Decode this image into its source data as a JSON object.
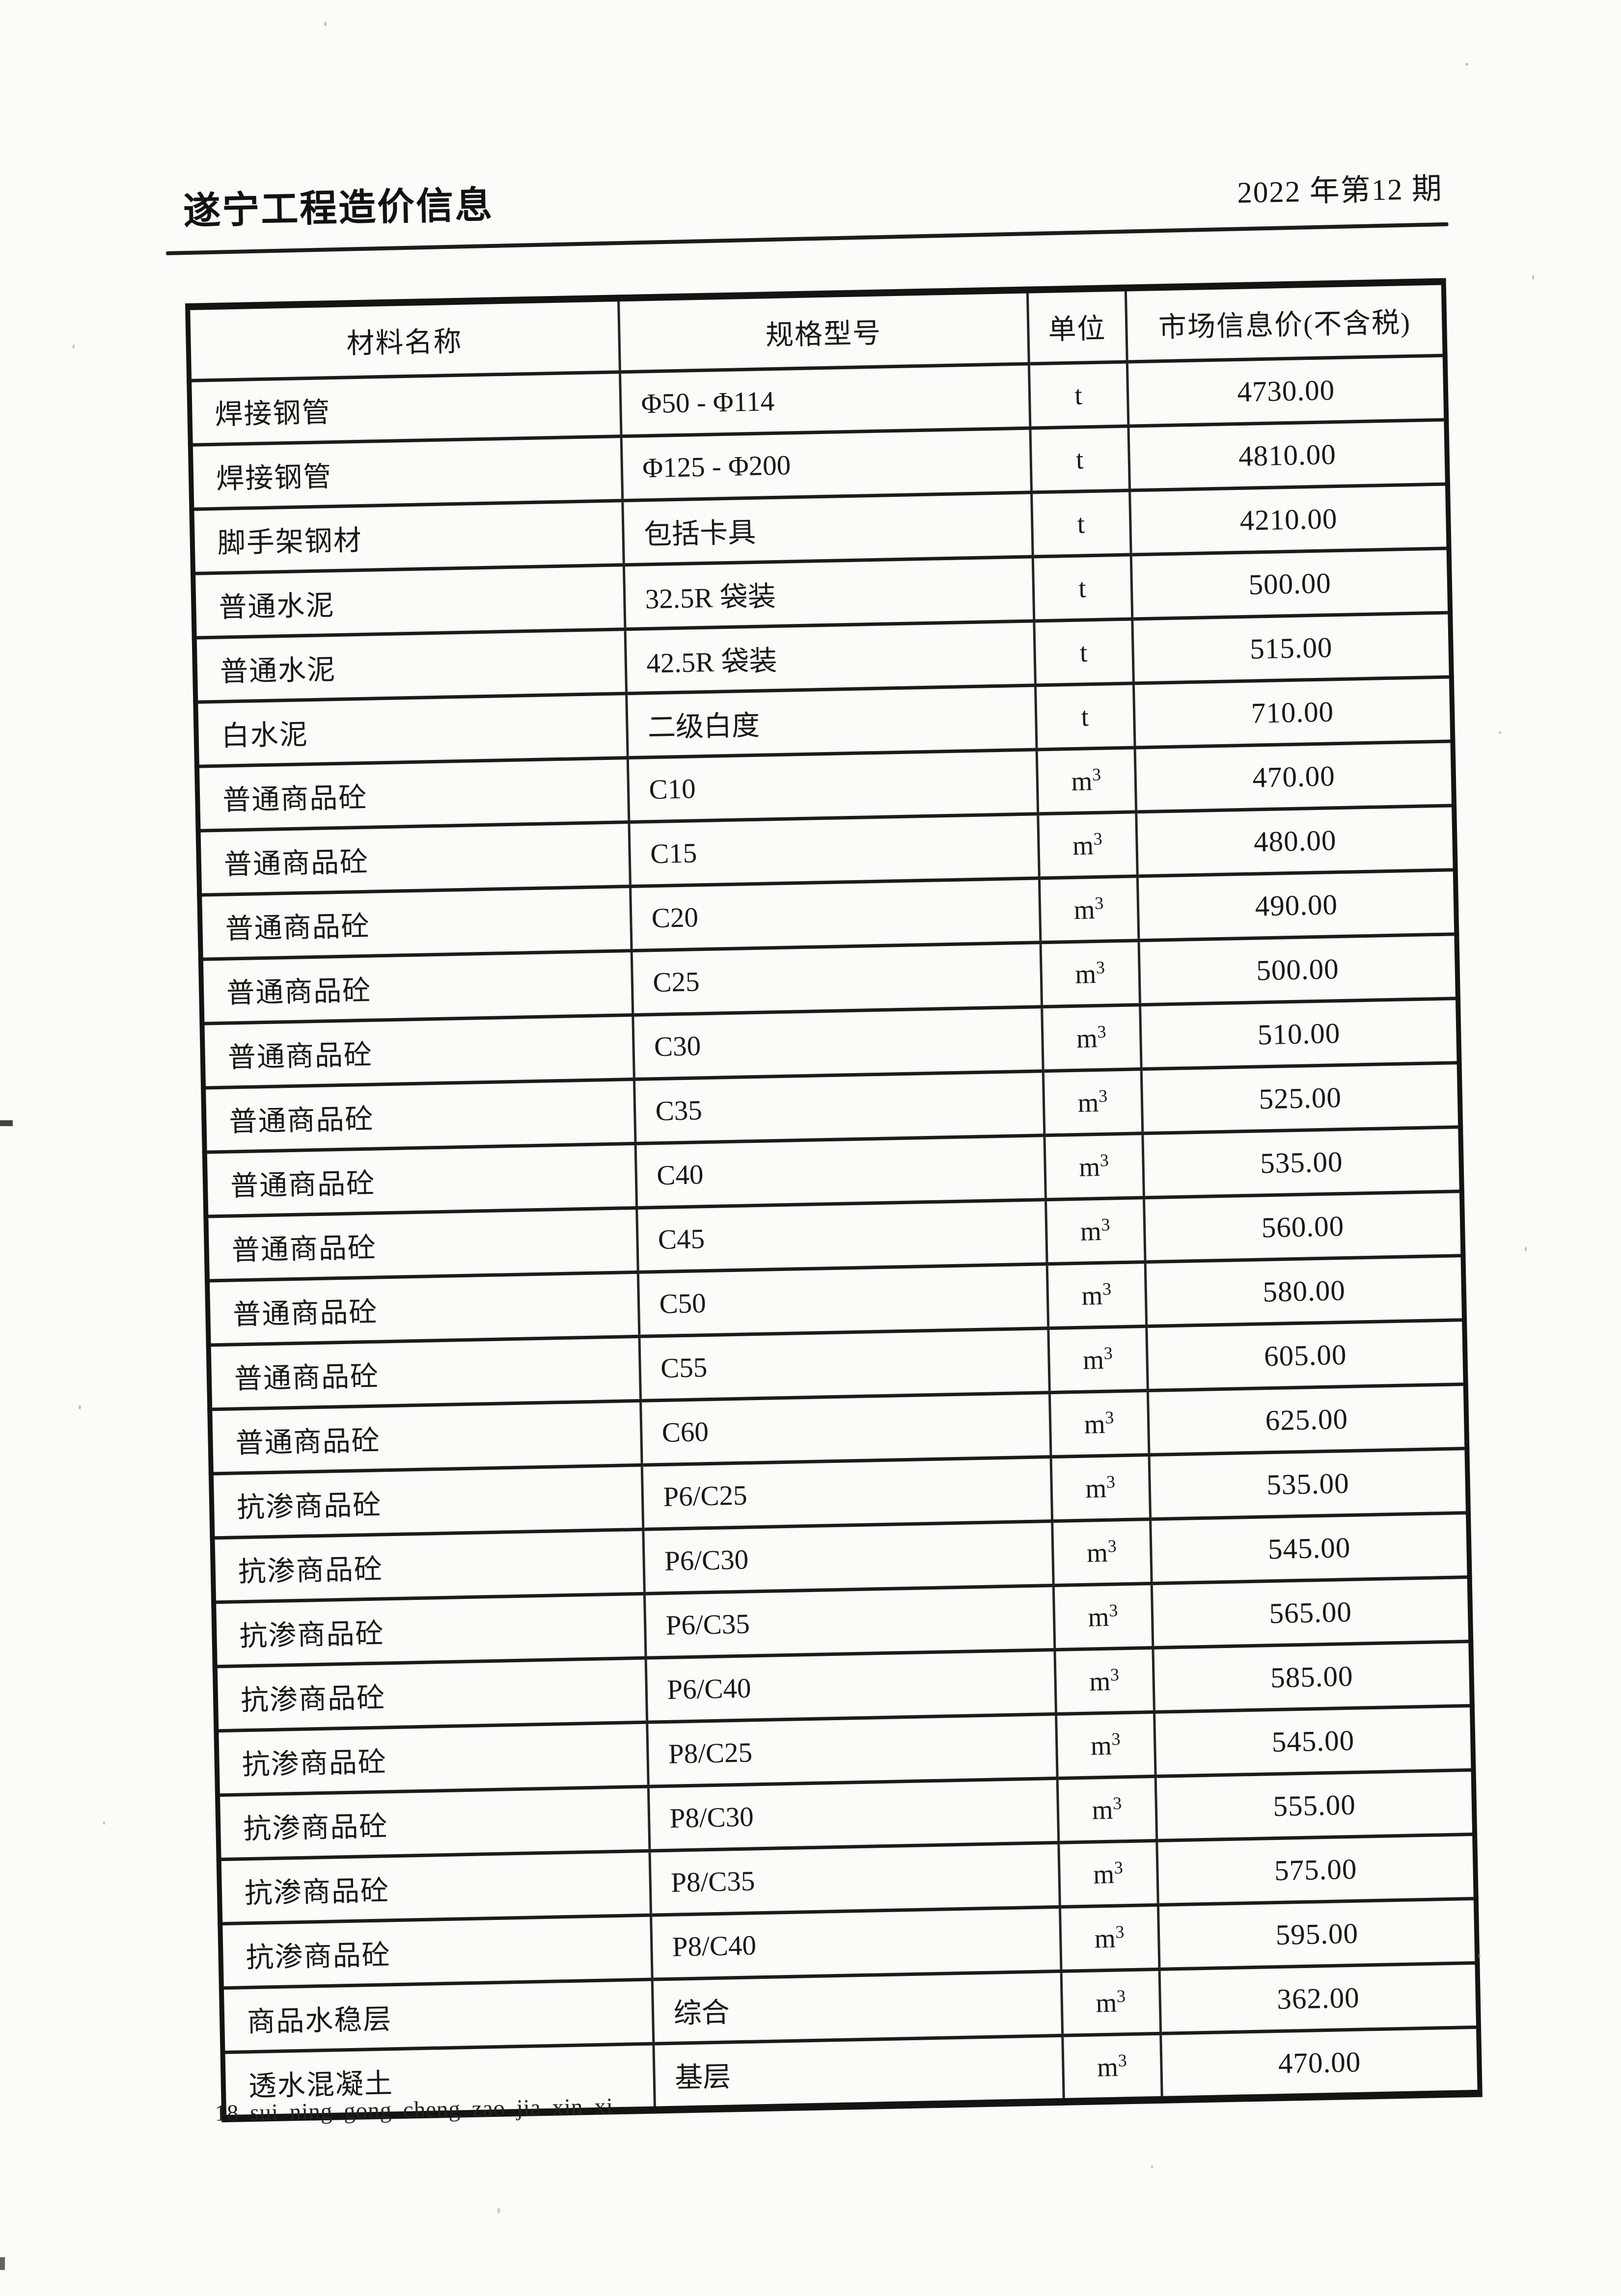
{
  "header": {
    "title": "遂宁工程造价信息",
    "issue": "2022 年第12 期"
  },
  "table": {
    "columns": [
      "材料名称",
      "规格型号",
      "单位",
      "市场信息价(不含税)"
    ],
    "rows": [
      {
        "name": "焊接钢管",
        "spec": "Φ50 - Φ114",
        "unit": "t",
        "price": "4730.00"
      },
      {
        "name": "焊接钢管",
        "spec": "Φ125 - Φ200",
        "unit": "t",
        "price": "4810.00"
      },
      {
        "name": "脚手架钢材",
        "spec": "包括卡具",
        "unit": "t",
        "price": "4210.00"
      },
      {
        "name": "普通水泥",
        "spec": "32.5R 袋装",
        "unit": "t",
        "price": "500.00"
      },
      {
        "name": "普通水泥",
        "spec": "42.5R 袋装",
        "unit": "t",
        "price": "515.00"
      },
      {
        "name": "白水泥",
        "spec": "二级白度",
        "unit": "t",
        "price": "710.00"
      },
      {
        "name": "普通商品砼",
        "spec": "C10",
        "unit": "m³",
        "price": "470.00"
      },
      {
        "name": "普通商品砼",
        "spec": "C15",
        "unit": "m³",
        "price": "480.00"
      },
      {
        "name": "普通商品砼",
        "spec": "C20",
        "unit": "m³",
        "price": "490.00"
      },
      {
        "name": "普通商品砼",
        "spec": "C25",
        "unit": "m³",
        "price": "500.00"
      },
      {
        "name": "普通商品砼",
        "spec": "C30",
        "unit": "m³",
        "price": "510.00"
      },
      {
        "name": "普通商品砼",
        "spec": "C35",
        "unit": "m³",
        "price": "525.00"
      },
      {
        "name": "普通商品砼",
        "spec": "C40",
        "unit": "m³",
        "price": "535.00"
      },
      {
        "name": "普通商品砼",
        "spec": "C45",
        "unit": "m³",
        "price": "560.00"
      },
      {
        "name": "普通商品砼",
        "spec": "C50",
        "unit": "m³",
        "price": "580.00"
      },
      {
        "name": "普通商品砼",
        "spec": "C55",
        "unit": "m³",
        "price": "605.00"
      },
      {
        "name": "普通商品砼",
        "spec": "C60",
        "unit": "m³",
        "price": "625.00"
      },
      {
        "name": "抗渗商品砼",
        "spec": "P6/C25",
        "unit": "m³",
        "price": "535.00"
      },
      {
        "name": "抗渗商品砼",
        "spec": "P6/C30",
        "unit": "m³",
        "price": "545.00"
      },
      {
        "name": "抗渗商品砼",
        "spec": "P6/C35",
        "unit": "m³",
        "price": "565.00"
      },
      {
        "name": "抗渗商品砼",
        "spec": "P6/C40",
        "unit": "m³",
        "price": "585.00"
      },
      {
        "name": "抗渗商品砼",
        "spec": "P8/C25",
        "unit": "m³",
        "price": "545.00"
      },
      {
        "name": "抗渗商品砼",
        "spec": "P8/C30",
        "unit": "m³",
        "price": "555.00"
      },
      {
        "name": "抗渗商品砼",
        "spec": "P8/C35",
        "unit": "m³",
        "price": "575.00"
      },
      {
        "name": "抗渗商品砼",
        "spec": "P8/C40",
        "unit": "m³",
        "price": "595.00"
      },
      {
        "name": "商品水稳层",
        "spec": "综合",
        "unit": "m³",
        "price": "362.00"
      },
      {
        "name": "透水混凝土",
        "spec": "基层",
        "unit": "m³",
        "price": "470.00"
      }
    ]
  },
  "footer": {
    "page_label": "18 sui ning gong cheng zao jia xin xi"
  }
}
